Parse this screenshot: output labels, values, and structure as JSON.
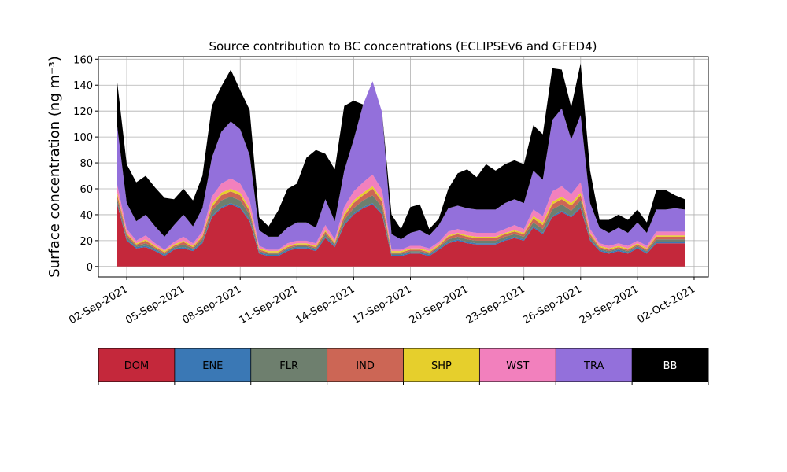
{
  "chart_data": {
    "type": "area",
    "title": "Source contribution to BC concentrations (ECLIPSEv6 and GFED4)",
    "ylabel": "Surface concentration (ng m⁻³)",
    "xlabel": "",
    "ylim": [
      -8,
      162
    ],
    "xlim": [
      "2021-08-31T12:00",
      "2021-10-02T18:00"
    ],
    "yticks": [
      0,
      20,
      40,
      60,
      80,
      100,
      120,
      140,
      160
    ],
    "xticks": [
      "2021-09-02",
      "2021-09-05",
      "2021-09-08",
      "2021-09-11",
      "2021-09-14",
      "2021-09-17",
      "2021-09-20",
      "2021-09-23",
      "2021-09-26",
      "2021-09-29",
      "2021-10-02"
    ],
    "xtick_labels": [
      "02-Sep-2021",
      "05-Sep-2021",
      "08-Sep-2021",
      "11-Sep-2021",
      "14-Sep-2021",
      "17-Sep-2021",
      "20-Sep-2021",
      "23-Sep-2021",
      "26-Sep-2021",
      "29-Sep-2021",
      "02-Oct-2021"
    ],
    "grid": true,
    "stacked": true,
    "x": [
      "2021-09-01T12:00",
      "2021-09-02T00:00",
      "2021-09-02T12:00",
      "2021-09-03T00:00",
      "2021-09-03T12:00",
      "2021-09-04T00:00",
      "2021-09-04T12:00",
      "2021-09-05T00:00",
      "2021-09-05T12:00",
      "2021-09-06T00:00",
      "2021-09-06T12:00",
      "2021-09-07T00:00",
      "2021-09-07T12:00",
      "2021-09-08T00:00",
      "2021-09-08T12:00",
      "2021-09-09T00:00",
      "2021-09-09T12:00",
      "2021-09-10T00:00",
      "2021-09-10T12:00",
      "2021-09-11T00:00",
      "2021-09-11T12:00",
      "2021-09-12T00:00",
      "2021-09-12T12:00",
      "2021-09-13T00:00",
      "2021-09-13T12:00",
      "2021-09-14T00:00",
      "2021-09-14T12:00",
      "2021-09-15T00:00",
      "2021-09-15T12:00",
      "2021-09-16T00:00",
      "2021-09-16T12:00",
      "2021-09-17T00:00",
      "2021-09-17T12:00",
      "2021-09-18T00:00",
      "2021-09-18T12:00",
      "2021-09-19T00:00",
      "2021-09-19T12:00",
      "2021-09-20T00:00",
      "2021-09-20T12:00",
      "2021-09-21T00:00",
      "2021-09-21T12:00",
      "2021-09-22T00:00",
      "2021-09-22T12:00",
      "2021-09-23T00:00",
      "2021-09-23T12:00",
      "2021-09-24T00:00",
      "2021-09-24T12:00",
      "2021-09-25T00:00",
      "2021-09-25T12:00",
      "2021-09-26T00:00",
      "2021-09-26T12:00",
      "2021-09-27T00:00",
      "2021-09-27T12:00",
      "2021-09-28T00:00",
      "2021-09-28T12:00",
      "2021-09-29T00:00",
      "2021-09-29T12:00",
      "2021-09-30T00:00",
      "2021-09-30T12:00",
      "2021-10-01T00:00",
      "2021-10-01T12:00"
    ],
    "series": [
      {
        "name": "DOM",
        "color": "#c4283b",
        "values": [
          48,
          20,
          14,
          15,
          12,
          8,
          13,
          14,
          12,
          18,
          38,
          45,
          48,
          45,
          35,
          10,
          8,
          8,
          12,
          14,
          14,
          12,
          22,
          15,
          32,
          40,
          45,
          48,
          40,
          8,
          8,
          10,
          10,
          8,
          13,
          18,
          20,
          18,
          17,
          17,
          17,
          20,
          22,
          20,
          30,
          25,
          38,
          42,
          38,
          45,
          20,
          12,
          10,
          12,
          10,
          14,
          10,
          18,
          18,
          18,
          18
        ]
      },
      {
        "name": "ENE",
        "color": "#3a78b5",
        "values": [
          1,
          1,
          1,
          1,
          1,
          1,
          1,
          1,
          1,
          1,
          1,
          1,
          1,
          1,
          1,
          1,
          1,
          1,
          1,
          1,
          1,
          1,
          1,
          1,
          1,
          1,
          1,
          1,
          1,
          1,
          1,
          1,
          1,
          1,
          1,
          1,
          1,
          1,
          1,
          1,
          1,
          1,
          1,
          1,
          1,
          1,
          1,
          1,
          1,
          1,
          1,
          1,
          1,
          1,
          1,
          1,
          1,
          1,
          1,
          1,
          1
        ]
      },
      {
        "name": "FLR",
        "color": "#6e7f6e",
        "values": [
          3,
          2,
          1,
          2,
          1,
          1,
          1,
          2,
          1,
          2,
          4,
          5,
          5,
          5,
          4,
          1,
          1,
          1,
          1,
          1,
          1,
          1,
          2,
          1,
          3,
          4,
          5,
          6,
          5,
          1,
          1,
          1,
          1,
          1,
          1,
          2,
          2,
          2,
          2,
          2,
          2,
          2,
          2,
          2,
          3,
          3,
          5,
          5,
          4,
          5,
          2,
          1,
          1,
          1,
          1,
          1,
          1,
          2,
          2,
          2,
          2
        ]
      },
      {
        "name": "IND",
        "color": "#cc6655",
        "values": [
          3,
          2,
          1,
          2,
          1,
          1,
          1,
          2,
          1,
          2,
          3,
          4,
          4,
          4,
          3,
          1,
          1,
          1,
          1,
          1,
          1,
          1,
          2,
          1,
          3,
          4,
          4,
          5,
          4,
          1,
          1,
          1,
          1,
          1,
          1,
          2,
          2,
          2,
          2,
          2,
          2,
          2,
          2,
          2,
          3,
          3,
          4,
          4,
          4,
          4,
          2,
          1,
          1,
          1,
          1,
          1,
          1,
          2,
          2,
          2,
          2
        ]
      },
      {
        "name": "SHP",
        "color": "#e6cf2c",
        "values": [
          2,
          1,
          1,
          1,
          1,
          1,
          1,
          1,
          1,
          1,
          2,
          2,
          2,
          2,
          2,
          1,
          1,
          1,
          1,
          1,
          1,
          1,
          1,
          1,
          2,
          2,
          2,
          2,
          2,
          1,
          1,
          1,
          1,
          1,
          1,
          1,
          1,
          1,
          1,
          1,
          1,
          1,
          1,
          1,
          2,
          2,
          2,
          2,
          2,
          2,
          1,
          1,
          1,
          1,
          1,
          1,
          1,
          1,
          1,
          1,
          1
        ]
      },
      {
        "name": "WST",
        "color": "#f280bd",
        "values": [
          6,
          3,
          2,
          3,
          2,
          1,
          2,
          3,
          2,
          3,
          6,
          7,
          8,
          7,
          6,
          2,
          1,
          1,
          2,
          2,
          2,
          2,
          4,
          2,
          5,
          7,
          8,
          9,
          7,
          1,
          1,
          2,
          2,
          2,
          2,
          3,
          3,
          3,
          3,
          3,
          3,
          3,
          4,
          3,
          5,
          5,
          8,
          8,
          7,
          8,
          3,
          2,
          2,
          2,
          2,
          2,
          2,
          3,
          3,
          3,
          3
        ]
      },
      {
        "name": "TRA",
        "color": "#9370db",
        "values": [
          45,
          20,
          15,
          16,
          13,
          10,
          13,
          17,
          13,
          18,
          30,
          40,
          44,
          42,
          35,
          12,
          10,
          10,
          12,
          14,
          14,
          12,
          20,
          14,
          28,
          40,
          60,
          72,
          60,
          12,
          8,
          10,
          12,
          10,
          13,
          18,
          18,
          18,
          18,
          18,
          18,
          20,
          20,
          20,
          30,
          28,
          55,
          60,
          42,
          52,
          20,
          12,
          10,
          12,
          10,
          14,
          10,
          17,
          17,
          18,
          17
        ]
      },
      {
        "name": "BB",
        "color": "#000000",
        "values": [
          34,
          30,
          30,
          30,
          30,
          30,
          20,
          20,
          20,
          25,
          40,
          35,
          40,
          30,
          35,
          10,
          8,
          20,
          30,
          30,
          50,
          60,
          35,
          40,
          50,
          30,
          0,
          0,
          0,
          15,
          8,
          20,
          20,
          5,
          5,
          15,
          25,
          30,
          25,
          35,
          30,
          30,
          30,
          30,
          35,
          35,
          40,
          30,
          25,
          40,
          25,
          6,
          10,
          10,
          10,
          10,
          8,
          15,
          15,
          10,
          8
        ]
      }
    ],
    "legend": {
      "placement": "bottom",
      "entries": [
        {
          "label": "DOM",
          "color": "#c4283b",
          "text_color": "#000000"
        },
        {
          "label": "ENE",
          "color": "#3a78b5",
          "text_color": "#000000"
        },
        {
          "label": "FLR",
          "color": "#6e7f6e",
          "text_color": "#000000"
        },
        {
          "label": "IND",
          "color": "#cc6655",
          "text_color": "#000000"
        },
        {
          "label": "SHP",
          "color": "#e6cf2c",
          "text_color": "#000000"
        },
        {
          "label": "WST",
          "color": "#f280bd",
          "text_color": "#000000"
        },
        {
          "label": "TRA",
          "color": "#9370db",
          "text_color": "#000000"
        },
        {
          "label": "BB",
          "color": "#000000",
          "text_color": "#ffffff"
        }
      ]
    }
  }
}
